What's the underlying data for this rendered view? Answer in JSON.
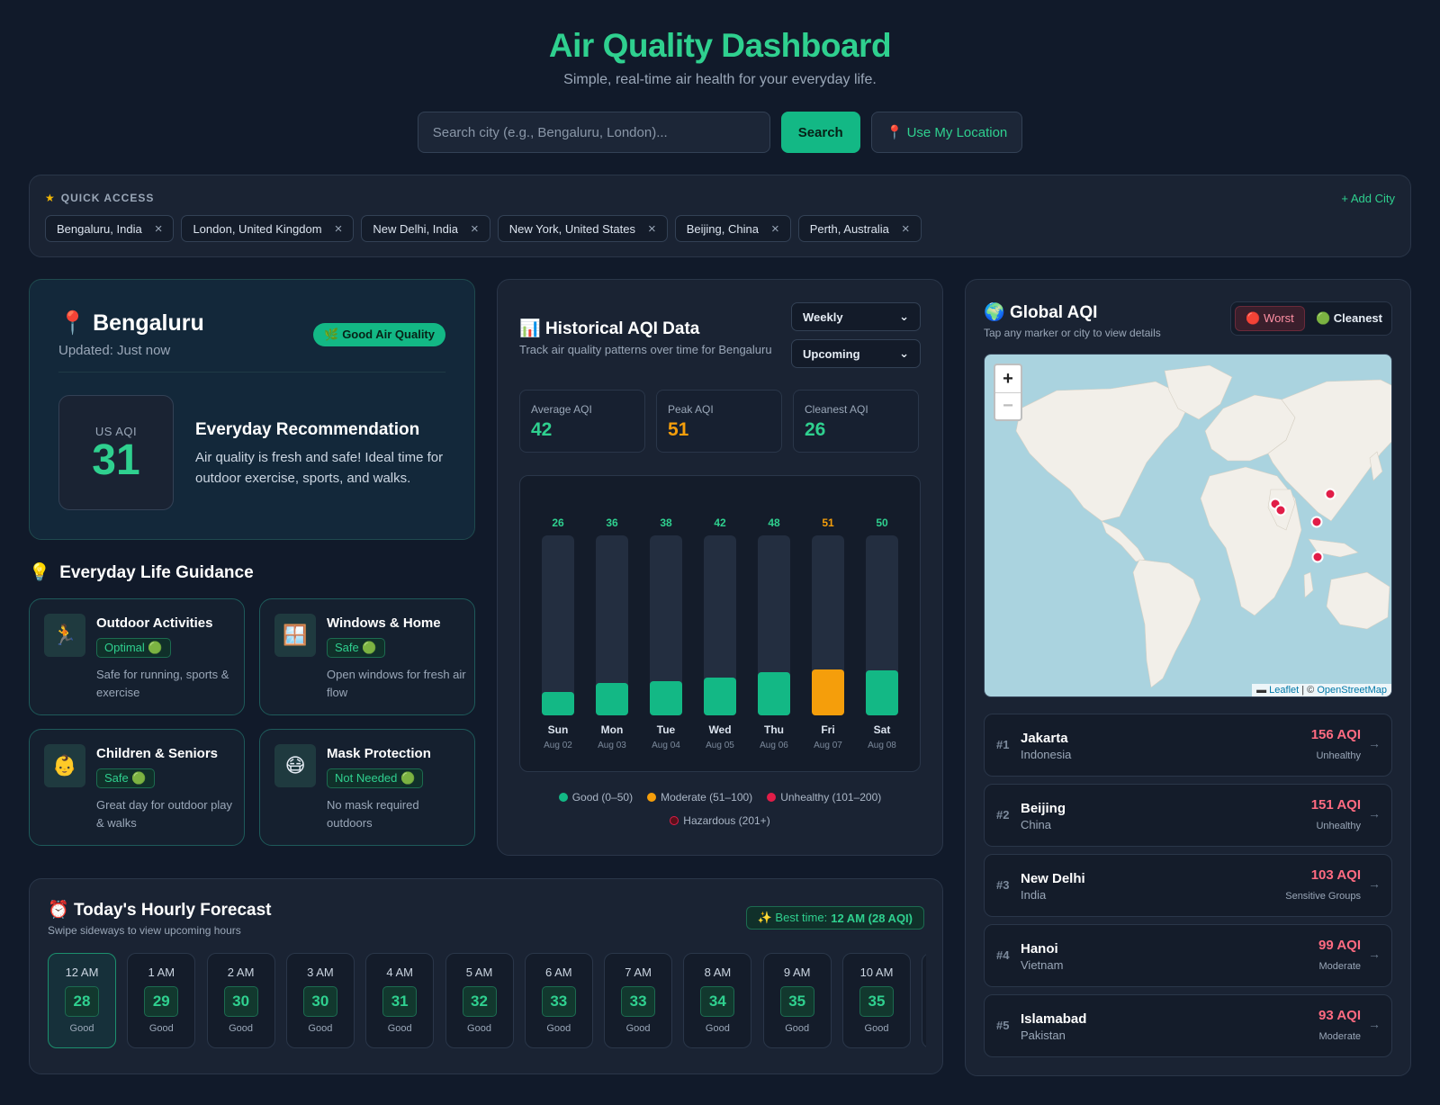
{
  "header": {
    "title": "Air Quality Dashboard",
    "subtitle": "Simple, real-time air health for your everyday life."
  },
  "search": {
    "placeholder": "Search city (e.g., Bengaluru, London)...",
    "value": "",
    "search_label": "Search",
    "location_label": "📍 Use My Location"
  },
  "quick_access": {
    "label": "QUICK ACCESS",
    "add_label": "+ Add City",
    "chips": [
      "Bengaluru, India",
      "London, United Kingdom",
      "New Delhi, India",
      "New York, United States",
      "Beijing, China",
      "Perth, Australia"
    ]
  },
  "city": {
    "name": "Bengaluru",
    "updated": "Updated: Just now",
    "badge": "🌿 Good Air Quality",
    "aqi_label": "US AQI",
    "aqi_value": "31",
    "rec_title": "Everyday Recommendation",
    "rec_text": "Air quality is fresh and safe! Ideal time for outdoor exercise, sports, and walks."
  },
  "guidance": {
    "title": "Everyday Life Guidance",
    "cards": [
      {
        "icon": "🏃",
        "icon_name": "runner-icon",
        "title": "Outdoor Activities",
        "badge": "Optimal 🟢",
        "text": "Safe for running, sports & exercise"
      },
      {
        "icon": "🪟",
        "icon_name": "window-icon",
        "title": "Windows & Home",
        "badge": "Safe 🟢",
        "text": "Open windows for fresh air flow"
      },
      {
        "icon": "👶",
        "icon_name": "baby-icon",
        "title": "Children & Seniors",
        "badge": "Safe 🟢",
        "text": "Great day for outdoor play & walks"
      },
      {
        "icon": "😷",
        "icon_name": "mask-icon",
        "title": "Mask Protection",
        "badge": "Not Needed 🟢",
        "text": "No mask required outdoors"
      }
    ]
  },
  "historical": {
    "title": "Historical AQI Data",
    "subtitle": "Track air quality patterns over time for Bengaluru",
    "period": "Weekly",
    "mode": "Upcoming",
    "stats": [
      {
        "label": "Average AQI",
        "value": "42",
        "color": "#2fd08f"
      },
      {
        "label": "Peak AQI",
        "value": "51",
        "color": "#f59e0b"
      },
      {
        "label": "Cleanest AQI",
        "value": "26",
        "color": "#2fd08f"
      }
    ],
    "legend": [
      {
        "label": "Good (0–50)",
        "color": "#13b885"
      },
      {
        "label": "Moderate (51–100)",
        "color": "#f59e0b"
      },
      {
        "label": "Unhealthy (101–200)",
        "color": "#e11d48"
      },
      {
        "label": "Hazardous (201+)",
        "color": "#5a0f1a"
      }
    ]
  },
  "chart_data": {
    "type": "bar",
    "categories": [
      "Sun",
      "Mon",
      "Tue",
      "Wed",
      "Thu",
      "Fri",
      "Sat"
    ],
    "dates": [
      "Aug 02",
      "Aug 03",
      "Aug 04",
      "Aug 05",
      "Aug 06",
      "Aug 07",
      "Aug 08"
    ],
    "values": [
      26,
      36,
      38,
      42,
      48,
      51,
      50
    ],
    "colors": [
      "#13b885",
      "#13b885",
      "#13b885",
      "#13b885",
      "#13b885",
      "#f59e0b",
      "#13b885"
    ],
    "ylim": [
      0,
      200
    ]
  },
  "global": {
    "title": "Global AQI",
    "subtitle": "Tap any marker or city to view details",
    "worst_label": "🔴 Worst",
    "cleanest_label": "🟢 Cleanest",
    "attribution_leaflet": "Leaflet",
    "attribution_osm": "OpenStreetMap",
    "ranking": [
      {
        "num": "#1",
        "city": "Jakarta",
        "country": "Indonesia",
        "aqi": "156 AQI",
        "category": "Unhealthy"
      },
      {
        "num": "#2",
        "city": "Beijing",
        "country": "China",
        "aqi": "151 AQI",
        "category": "Unhealthy"
      },
      {
        "num": "#3",
        "city": "New Delhi",
        "country": "India",
        "aqi": "103 AQI",
        "category": "Sensitive Groups"
      },
      {
        "num": "#4",
        "city": "Hanoi",
        "country": "Vietnam",
        "aqi": "99 AQI",
        "category": "Moderate"
      },
      {
        "num": "#5",
        "city": "Islamabad",
        "country": "Pakistan",
        "aqi": "93 AQI",
        "category": "Moderate"
      }
    ]
  },
  "forecast": {
    "title": "Today's Hourly Forecast",
    "subtitle": "Swipe sideways to view upcoming hours",
    "best_label": "✨ Best time:",
    "best_value": "12 AM (28 AQI)",
    "hours": [
      {
        "time": "12 AM",
        "aqi": "28",
        "cat": "Good"
      },
      {
        "time": "1 AM",
        "aqi": "29",
        "cat": "Good"
      },
      {
        "time": "2 AM",
        "aqi": "30",
        "cat": "Good"
      },
      {
        "time": "3 AM",
        "aqi": "30",
        "cat": "Good"
      },
      {
        "time": "4 AM",
        "aqi": "31",
        "cat": "Good"
      },
      {
        "time": "5 AM",
        "aqi": "32",
        "cat": "Good"
      },
      {
        "time": "6 AM",
        "aqi": "33",
        "cat": "Good"
      },
      {
        "time": "7 AM",
        "aqi": "33",
        "cat": "Good"
      },
      {
        "time": "8 AM",
        "aqi": "34",
        "cat": "Good"
      },
      {
        "time": "9 AM",
        "aqi": "35",
        "cat": "Good"
      },
      {
        "time": "10 AM",
        "aqi": "35",
        "cat": "Good"
      }
    ]
  }
}
